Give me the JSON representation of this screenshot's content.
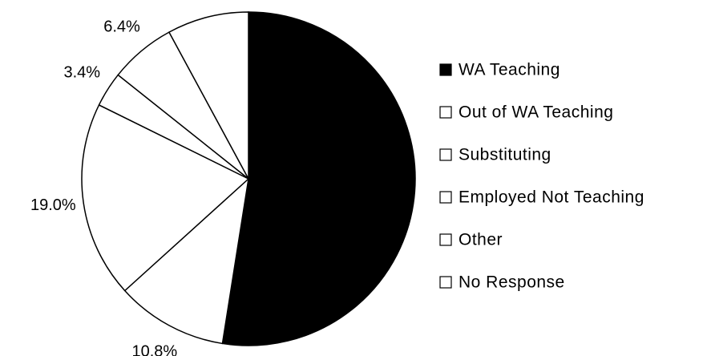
{
  "chart_data": {
    "type": "pie",
    "categories": [
      "WA Teaching",
      "Out of WA Teaching",
      "Substituting",
      "Employed Not Teaching",
      "Other",
      "No Response"
    ],
    "values": [
      52.5,
      10.8,
      19.0,
      3.4,
      6.4,
      7.9
    ],
    "value_labels": [
      null,
      "10.8%",
      "19.0%",
      "3.4%",
      "6.4%",
      "7.9%"
    ],
    "colors": [
      "#000000",
      "#ffffff",
      "#ffffff",
      "#ffffff",
      "#ffffff",
      "#ffffff"
    ],
    "legend": "right"
  }
}
